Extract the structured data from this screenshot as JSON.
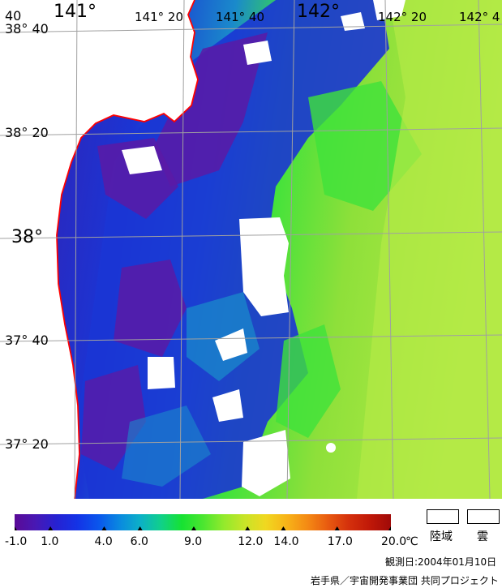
{
  "colors": {
    "land": "#ffffff",
    "coast": "#ff0000",
    "grid": "#a0a0a0",
    "cold": "#5a1aa6",
    "blue": "#1b35d4",
    "teal": "#1a8acb",
    "green": "#3ee23b",
    "yellowgreen": "#9be23c",
    "lime": "#b4ea46"
  },
  "map": {
    "lon_labels": [
      {
        "text": "141°",
        "lon": 141.0,
        "size": "big"
      },
      {
        "text": "141° 20",
        "lon": 141.333,
        "size": "lon"
      },
      {
        "text": "141° 40",
        "lon": 141.667,
        "size": "lon"
      },
      {
        "text": "142°",
        "lon": 142.0,
        "size": "big"
      },
      {
        "text": "142° 20",
        "lon": 142.333,
        "size": "lon"
      },
      {
        "text": "142° 4",
        "lon": 142.667,
        "size": "lon"
      }
    ],
    "lat_labels": [
      {
        "text": "38° 40",
        "lat": 38.667,
        "extra": "40"
      },
      {
        "text": "38° 20",
        "lat": 38.333
      },
      {
        "text": "38°",
        "lat": 38.0
      },
      {
        "text": "37° 40",
        "lat": 37.667
      },
      {
        "text": "37° 20",
        "lat": 37.333
      }
    ]
  },
  "colorbar": {
    "colors": [
      "#5a0a96",
      "#4818b4",
      "#2622d2",
      "#1433e6",
      "#0a55ec",
      "#0a88e0",
      "#0cb0c8",
      "#10d08a",
      "#16e232",
      "#4ae630",
      "#92ea2c",
      "#c8e428",
      "#f0d820",
      "#f8b418",
      "#f48a14",
      "#e85a10",
      "#d4300c",
      "#c01808",
      "#a00a08"
    ],
    "min": -1.0,
    "max": 20.0,
    "ticks": [
      {
        "label": "-1.0",
        "value": -1.0
      },
      {
        "label": "1.0",
        "value": 1.0
      },
      {
        "label": "4.0",
        "value": 4.0
      },
      {
        "label": "6.0",
        "value": 6.0
      },
      {
        "label": "9.0",
        "value": 9.0
      },
      {
        "label": "12.0",
        "value": 12.0
      },
      {
        "label": "14.0",
        "value": 14.0
      },
      {
        "label": "17.0",
        "value": 17.0
      },
      {
        "label": "20.0",
        "value": 20.0
      }
    ],
    "unit": "℃"
  },
  "legend": {
    "land": "陸域",
    "cloud": "雲"
  },
  "footer": {
    "date": "観測日:2004年01月10日",
    "credit": "岩手県／宇宙開発事業団 共同プロジェクト"
  }
}
